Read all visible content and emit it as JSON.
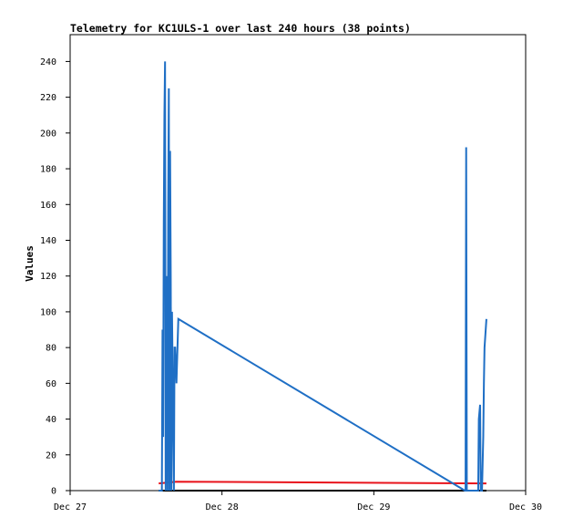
{
  "chart_data": {
    "type": "line",
    "title": "Telemetry for KC1ULS-1 over last 240 hours (38 points)",
    "xlabel": "",
    "ylabel": "Values",
    "xlim": [
      "Dec 27",
      "Dec 30"
    ],
    "ylim": [
      0,
      255
    ],
    "x_tick_labels": [
      "Dec 27",
      "Dec 28",
      "Dec 29",
      "Dec 30"
    ],
    "y_tick_labels": [
      "0",
      "20",
      "40",
      "60",
      "80",
      "100",
      "120",
      "140",
      "160",
      "180",
      "200",
      "220",
      "240"
    ],
    "grid": false,
    "legend": "none",
    "series": [
      {
        "color": "#1f6fc5",
        "x": [
          "Dec 27 14:00",
          "Dec 27 14:24",
          "Dec 27 14:30",
          "Dec 27 14:36",
          "Dec 27 14:42",
          "Dec 27 14:48",
          "Dec 27 14:54",
          "Dec 27 15:00",
          "Dec 27 15:06",
          "Dec 27 15:12",
          "Dec 27 15:18",
          "Dec 27 15:24",
          "Dec 27 15:30",
          "Dec 27 15:36",
          "Dec 27 15:42",
          "Dec 27 15:48",
          "Dec 27 15:54",
          "Dec 27 16:00",
          "Dec 27 16:06",
          "Dec 27 16:24",
          "Dec 27 16:30",
          "Dec 27 16:36",
          "Dec 27 16:48",
          "Dec 27 17:06",
          "Dec 29 14:24",
          "Dec 29 14:30",
          "Dec 29 14:36",
          "Dec 29 14:42",
          "Dec 29 16:30",
          "Dec 29 16:36",
          "Dec 29 16:48",
          "Dec 29 16:54",
          "Dec 29 17:00",
          "Dec 29 17:06",
          "Dec 29 17:18",
          "Dec 29 17:24",
          "Dec 29 17:30",
          "Dec 29 17:48"
        ],
        "y": [
          0,
          0,
          0,
          90,
          30,
          150,
          210,
          240,
          0,
          110,
          120,
          0,
          160,
          225,
          0,
          190,
          120,
          0,
          100,
          0,
          80,
          80,
          60,
          96,
          0,
          0,
          192,
          0,
          0,
          40,
          48,
          0,
          0,
          0,
          30,
          60,
          80,
          96
        ]
      },
      {
        "color": "#e8131b",
        "x": [
          "Dec 27 14:00",
          "Dec 27 16:48",
          "Dec 29 17:48"
        ],
        "y": [
          4,
          5,
          4
        ]
      },
      {
        "color": "#000000",
        "x": [
          "Dec 27 14:00",
          "Dec 29 17:48"
        ],
        "y": [
          0,
          0
        ]
      }
    ]
  }
}
